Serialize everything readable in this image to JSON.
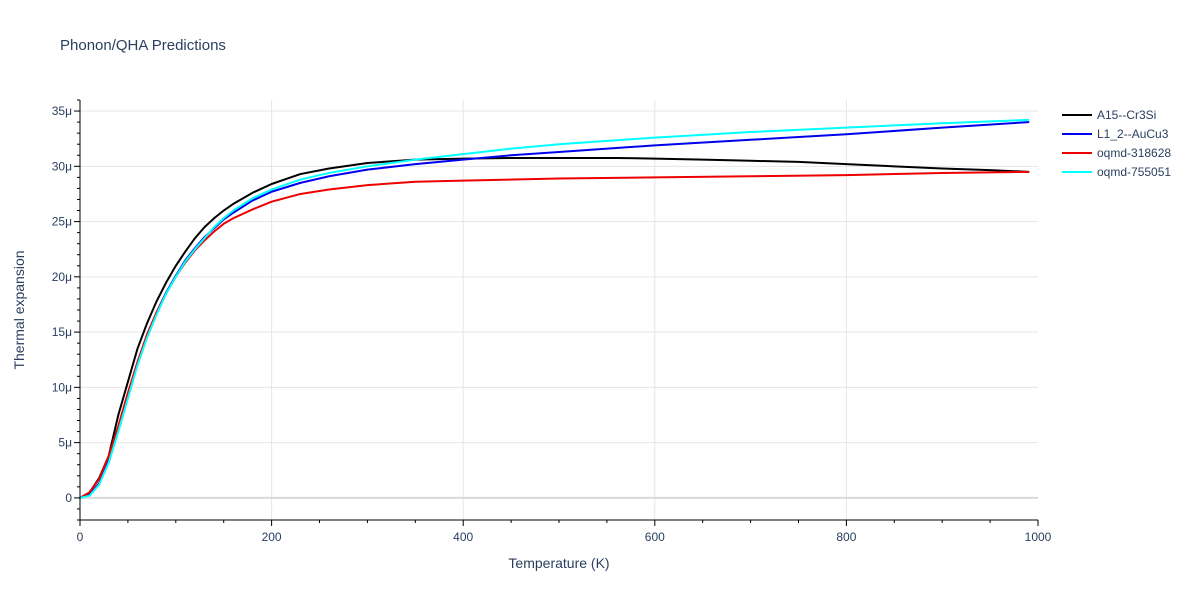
{
  "chart_data": {
    "type": "line",
    "title": "Phonon/QHA Predictions",
    "xlabel": "Temperature (K)",
    "ylabel": "Thermal expansion",
    "xlim": [
      0,
      1000
    ],
    "ylim": [
      -2e-06,
      3.6e-05
    ],
    "x_ticks": [
      0,
      200,
      400,
      600,
      800,
      1000
    ],
    "x_tick_labels": [
      "0",
      "200",
      "400",
      "600",
      "800",
      "1000"
    ],
    "y_ticks": [
      0,
      5e-06,
      1e-05,
      1.5e-05,
      2e-05,
      2.5e-05,
      3e-05,
      3.5e-05
    ],
    "y_tick_labels": [
      "0",
      "5μ",
      "10μ",
      "15μ",
      "20μ",
      "25μ",
      "30μ",
      "35μ"
    ],
    "grid": true,
    "legend_position": "top-right",
    "series": [
      {
        "name": "A15--Cr3Si",
        "color": "#000000",
        "x": [
          0,
          10,
          20,
          30,
          40,
          50,
          60,
          70,
          80,
          90,
          100,
          110,
          120,
          130,
          140,
          150,
          160,
          180,
          200,
          230,
          260,
          300,
          350,
          400,
          450,
          500,
          560,
          600,
          650,
          700,
          750,
          800,
          850,
          900,
          950,
          990
        ],
        "y": [
          0,
          5e-07,
          1.8e-06,
          3.8e-06,
          7.5e-06,
          1.05e-05,
          1.35e-05,
          1.58e-05,
          1.78e-05,
          1.95e-05,
          2.1e-05,
          2.23e-05,
          2.35e-05,
          2.45e-05,
          2.53e-05,
          2.6e-05,
          2.66e-05,
          2.76e-05,
          2.84e-05,
          2.93e-05,
          2.98e-05,
          3.03e-05,
          3.06e-05,
          3.07e-05,
          3.075e-05,
          3.075e-05,
          3.075e-05,
          3.07e-05,
          3.06e-05,
          3.05e-05,
          3.04e-05,
          3.02e-05,
          3e-05,
          2.98e-05,
          2.965e-05,
          2.95e-05
        ]
      },
      {
        "name": "L1_2--AuCu3",
        "color": "#0000ee",
        "x": [
          0,
          10,
          20,
          30,
          40,
          50,
          60,
          70,
          80,
          90,
          100,
          110,
          120,
          130,
          140,
          150,
          160,
          180,
          200,
          230,
          260,
          300,
          350,
          400,
          450,
          500,
          600,
          700,
          800,
          900,
          990
        ],
        "y": [
          0,
          3e-07,
          1.3e-06,
          3.4e-06,
          6.3e-06,
          9.2e-06,
          1.22e-05,
          1.46e-05,
          1.68e-05,
          1.86e-05,
          2.01e-05,
          2.15e-05,
          2.26e-05,
          2.36e-05,
          2.44e-05,
          2.52e-05,
          2.58e-05,
          2.69e-05,
          2.77e-05,
          2.85e-05,
          2.91e-05,
          2.97e-05,
          3.02e-05,
          3.06e-05,
          3.1e-05,
          3.13e-05,
          3.19e-05,
          3.24e-05,
          3.29e-05,
          3.35e-05,
          3.4e-05
        ]
      },
      {
        "name": "oqmd-318628",
        "color": "#ee0000",
        "x": [
          0,
          10,
          20,
          30,
          40,
          50,
          60,
          70,
          80,
          90,
          100,
          110,
          120,
          130,
          140,
          150,
          160,
          180,
          200,
          230,
          260,
          300,
          350,
          400,
          500,
          600,
          700,
          800,
          900,
          990
        ],
        "y": [
          0,
          5e-07,
          1.7e-06,
          3.8e-06,
          6.5e-06,
          9.5e-06,
          1.23e-05,
          1.48e-05,
          1.68e-05,
          1.85e-05,
          2e-05,
          2.13e-05,
          2.24e-05,
          2.33e-05,
          2.41e-05,
          2.48e-05,
          2.53e-05,
          2.61e-05,
          2.68e-05,
          2.75e-05,
          2.79e-05,
          2.83e-05,
          2.86e-05,
          2.87e-05,
          2.89e-05,
          2.9e-05,
          2.91e-05,
          2.92e-05,
          2.94e-05,
          2.95e-05
        ]
      },
      {
        "name": "oqmd-755051",
        "color": "#00ffff",
        "x": [
          0,
          10,
          20,
          30,
          40,
          50,
          60,
          70,
          80,
          90,
          100,
          110,
          120,
          130,
          140,
          150,
          160,
          180,
          200,
          230,
          260,
          300,
          350,
          400,
          450,
          500,
          600,
          700,
          800,
          900,
          990
        ],
        "y": [
          0,
          2e-07,
          1.2e-06,
          3.2e-06,
          6e-06,
          9e-06,
          1.2e-05,
          1.45e-05,
          1.66e-05,
          1.85e-05,
          2e-05,
          2.14e-05,
          2.25e-05,
          2.35e-05,
          2.45e-05,
          2.53e-05,
          2.6e-05,
          2.71e-05,
          2.79e-05,
          2.88e-05,
          2.94e-05,
          3e-05,
          3.06e-05,
          3.11e-05,
          3.16e-05,
          3.2e-05,
          3.26e-05,
          3.31e-05,
          3.35e-05,
          3.39e-05,
          3.42e-05
        ]
      }
    ]
  }
}
